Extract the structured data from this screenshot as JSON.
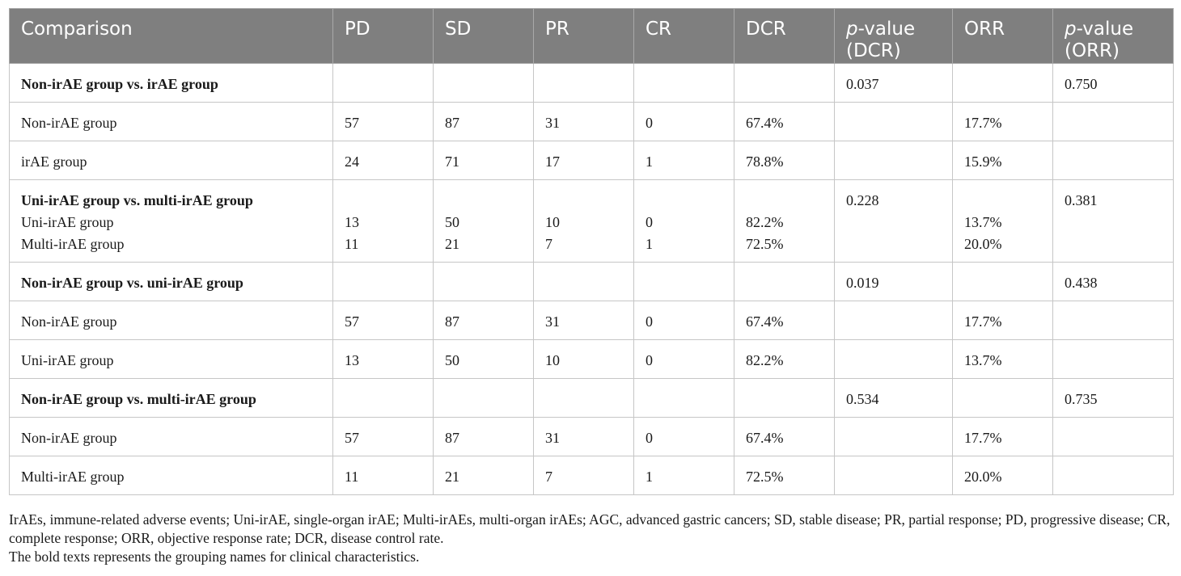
{
  "table": {
    "headers": {
      "comparison": "Comparison",
      "pd": "PD",
      "sd": "SD",
      "pr": "PR",
      "cr": "CR",
      "dcr": "DCR",
      "p_dcr_italic": "p",
      "p_dcr_rest": "-value (DCR)",
      "orr": "ORR",
      "p_orr_italic": "p",
      "p_orr_rest": "-value (ORR)"
    },
    "rows": [
      {
        "label": "Non-irAE group vs. irAE group",
        "pd": "",
        "sd": "",
        "pr": "",
        "cr": "",
        "dcr": "",
        "p_dcr": "0.037",
        "orr": "",
        "p_orr": "0.750"
      },
      {
        "label": "Non-irAE group",
        "pd": "57",
        "sd": "87",
        "pr": "31",
        "cr": "0",
        "dcr": "67.4%",
        "p_dcr": "",
        "orr": "17.7%",
        "p_orr": ""
      },
      {
        "label": "irAE group",
        "pd": "24",
        "sd": "71",
        "pr": "17",
        "cr": "1",
        "dcr": "78.8%",
        "p_dcr": "",
        "orr": "15.9%",
        "p_orr": ""
      },
      {
        "label": "Uni-irAE group vs. multi-irAE group",
        "sub1": "Uni-irAE group",
        "sub2": "Multi-irAE group",
        "pd1": "13",
        "pd2": "11",
        "sd1": "50",
        "sd2": "21",
        "pr1": "10",
        "pr2": "7",
        "cr1": "0",
        "cr2": "1",
        "dcr1": "82.2%",
        "dcr2": "72.5%",
        "p_dcr": "0.228",
        "orr1": "13.7%",
        "orr2": "20.0%",
        "p_orr": "0.381"
      },
      {
        "label": "Non-irAE group vs. uni-irAE group",
        "pd": "",
        "sd": "",
        "pr": "",
        "cr": "",
        "dcr": "",
        "p_dcr": "0.019",
        "orr": "",
        "p_orr": "0.438"
      },
      {
        "label": "Non-irAE group",
        "pd": "57",
        "sd": "87",
        "pr": "31",
        "cr": "0",
        "dcr": "67.4%",
        "p_dcr": "",
        "orr": "17.7%",
        "p_orr": ""
      },
      {
        "label": "Uni-irAE group",
        "pd": "13",
        "sd": "50",
        "pr": "10",
        "cr": "0",
        "dcr": "82.2%",
        "p_dcr": "",
        "orr": "13.7%",
        "p_orr": ""
      },
      {
        "label": "Non-irAE group vs. multi-irAE group",
        "pd": "",
        "sd": "",
        "pr": "",
        "cr": "",
        "dcr": "",
        "p_dcr": "0.534",
        "orr": "",
        "p_orr": "0.735"
      },
      {
        "label": "Non-irAE group",
        "pd": "57",
        "sd": "87",
        "pr": "31",
        "cr": "0",
        "dcr": "67.4%",
        "p_dcr": "",
        "orr": "17.7%",
        "p_orr": ""
      },
      {
        "label": "Multi-irAE group",
        "pd": "11",
        "sd": "21",
        "pr": "7",
        "cr": "1",
        "dcr": "72.5%",
        "p_dcr": "",
        "orr": "20.0%",
        "p_orr": ""
      }
    ]
  },
  "footnotes": {
    "abbreviations": "IrAEs, immune-related adverse events; Uni-irAE, single-organ irAE; Multi-irAEs, multi-organ irAEs; AGC, advanced gastric cancers; SD, stable disease; PR, partial response; PD, progressive disease; CR, complete response; ORR, objective response rate; DCR, disease control rate.",
    "bold_note": "The bold texts represents the grouping names for clinical characteristics."
  }
}
